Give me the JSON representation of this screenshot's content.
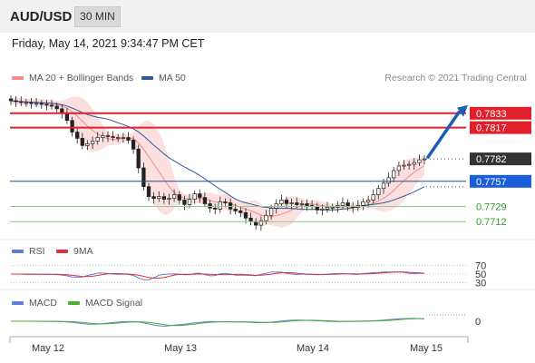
{
  "header": {
    "symbol": "AUD/USD",
    "timeframe": "30 MIN"
  },
  "timestamp": "Friday, May 14, 2021 9:34:47 PM CET",
  "copyright": "Research © 2021 Trading Central",
  "legends": {
    "main": [
      {
        "label": "MA 20 + Bollinger Bands",
        "color": "#f28b8b"
      },
      {
        "label": "MA 50",
        "color": "#2d5a9a"
      }
    ],
    "rsi": [
      {
        "label": "RSI",
        "color": "#5b7fd6"
      },
      {
        "label": "9MA",
        "color": "#e0323c"
      }
    ],
    "macd": [
      {
        "label": "MACD",
        "color": "#5b7fd6"
      },
      {
        "label": "MACD Signal",
        "color": "#4caf2c"
      }
    ]
  },
  "chart_data": {
    "type": "line",
    "price_axis": {
      "ylim": [
        0.7694,
        0.7848
      ]
    },
    "levels": [
      {
        "value": 0.7833,
        "label": "0.7833",
        "style": "resistance",
        "color": "#e0202a"
      },
      {
        "value": 0.7817,
        "label": "0.7817",
        "style": "resistance",
        "color": "#e0202a"
      },
      {
        "value": 0.7782,
        "label": "0.7782",
        "style": "current",
        "color": "#333333"
      },
      {
        "value": 0.7757,
        "label": "0.7757",
        "style": "pivot",
        "color": "#1a5fd8"
      },
      {
        "value": 0.7729,
        "label": "0.7729",
        "style": "support",
        "color": "#2e9a2e"
      },
      {
        "value": 0.7712,
        "label": "0.7712",
        "style": "support",
        "color": "#2e9a2e"
      }
    ],
    "x_ticks": [
      "May 12",
      "May 13",
      "May 14",
      "May 15"
    ],
    "close_series": [
      0.7847,
      0.7846,
      0.7845,
      0.7845,
      0.7844,
      0.7844,
      0.7843,
      0.7842,
      0.7841,
      0.7838,
      0.7833,
      0.7825,
      0.7812,
      0.7805,
      0.7797,
      0.7799,
      0.7802,
      0.7806,
      0.7808,
      0.7807,
      0.7806,
      0.7806,
      0.7806,
      0.7803,
      0.7793,
      0.7772,
      0.7751,
      0.774,
      0.7738,
      0.774,
      0.7737,
      0.7738,
      0.7742,
      0.7736,
      0.7731,
      0.7737,
      0.7743,
      0.7739,
      0.7732,
      0.7727,
      0.7726,
      0.7734,
      0.7733,
      0.7726,
      0.7724,
      0.7722,
      0.7716,
      0.7712,
      0.7708,
      0.7713,
      0.7719,
      0.7727,
      0.7732,
      0.7736,
      0.7732,
      0.7733,
      0.7731,
      0.7732,
      0.773,
      0.7729,
      0.7725,
      0.7726,
      0.7728,
      0.7728,
      0.773,
      0.7733,
      0.7729,
      0.7728,
      0.773,
      0.7734,
      0.7736,
      0.7742,
      0.7749,
      0.7755,
      0.7761,
      0.7769,
      0.7774,
      0.7775,
      0.7776,
      0.7778,
      0.7781,
      0.7782
    ],
    "rsi": {
      "levels": [
        70,
        50,
        30
      ]
    },
    "macd": {
      "levels": [
        0
      ]
    },
    "projection": {
      "from": 0.7782,
      "to": 0.7833
    }
  }
}
